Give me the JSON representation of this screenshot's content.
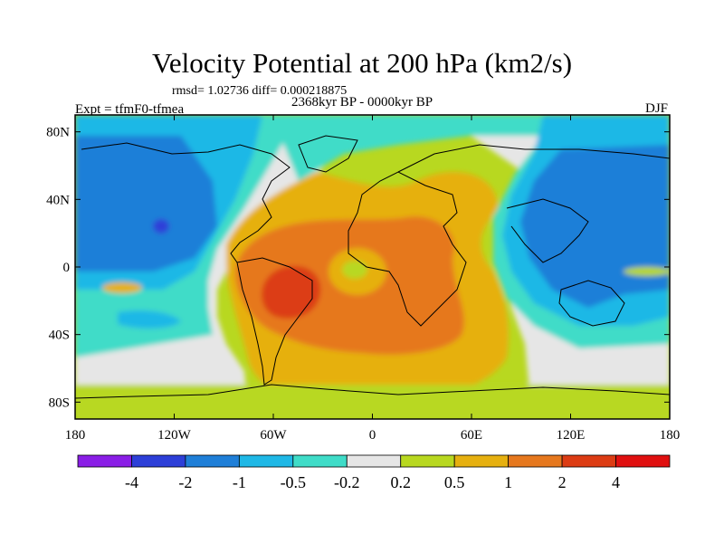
{
  "title": "Velocity Potential at 200 hPa (km2/s)",
  "stats": "rmsd= 1.02736 diff= 0.000218875",
  "experiment": "Expt = tfmF0-tfmea",
  "period": "2368kyr BP - 0000kyr BP",
  "season": "DJF",
  "lon_ticks": [
    "180",
    "120W",
    "60W",
    "0",
    "60E",
    "120E",
    "180"
  ],
  "lat_ticks": [
    "80N",
    "40N",
    "0",
    "40S",
    "80S"
  ],
  "colorbar": {
    "labels": [
      "-4",
      "-2",
      "-1",
      "-0.5",
      "-0.2",
      "0.2",
      "0.5",
      "1",
      "2",
      "4"
    ],
    "colors": [
      "#8a1ee6",
      "#2d3fd8",
      "#1f7fd8",
      "#1fb8e6",
      "#3fdcc8",
      "#e6e6e6",
      "#b8d820",
      "#e6b010",
      "#e6781e",
      "#dc3c14",
      "#e01010"
    ]
  }
}
